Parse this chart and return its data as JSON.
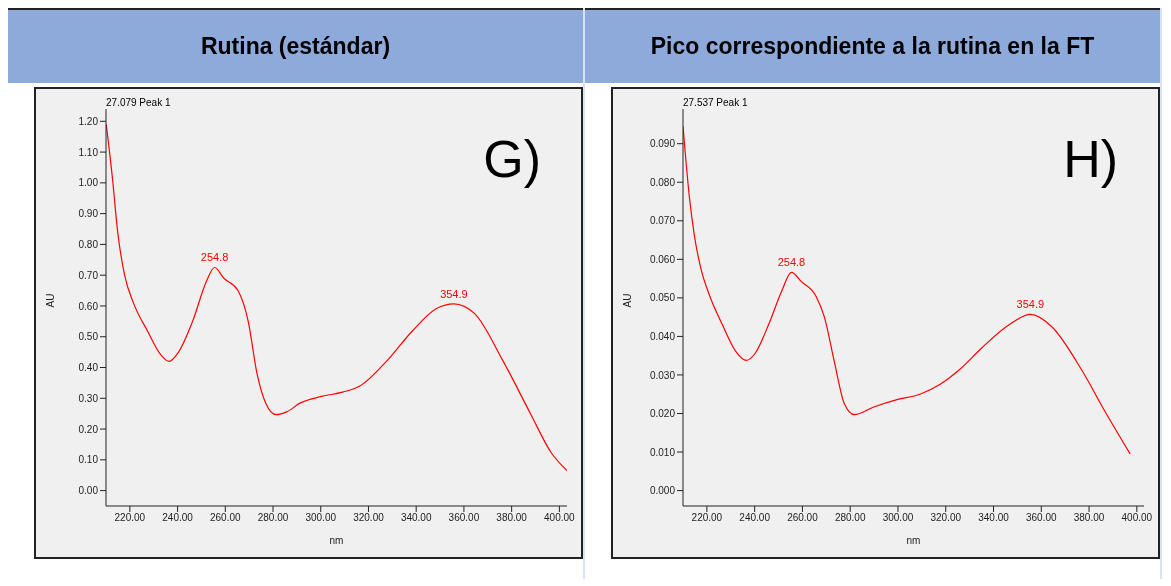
{
  "chart_data": [
    {
      "type": "line",
      "title": "Rutina (estándar)",
      "subtitle": "27.079 Peak 1",
      "xlabel": "nm",
      "ylabel": "AU",
      "marker": "none",
      "line_style": "solid",
      "grid": false,
      "legend": false,
      "x": [
        210.1,
        212.7,
        214.9,
        217.8,
        221.5,
        227.3,
        233.1,
        236.4,
        240.4,
        246.3,
        252.1,
        255.5,
        259.4,
        265.3,
        269.6,
        273.3,
        276.9,
        281.3,
        285.7,
        291.5,
        300.3,
        309.1,
        316.4,
        328,
        338.2,
        348.5,
        355.8,
        364.5,
        376.2,
        387.9,
        396.6,
        403.2
      ],
      "series": [
        {
          "color": "#ff0000",
          "values": [
            1.19,
            1.015,
            0.84,
            0.7,
            0.61,
            0.52,
            0.44,
            0.42,
            0.45,
            0.55,
            0.68,
            0.725,
            0.69,
            0.65,
            0.55,
            0.38,
            0.285,
            0.247,
            0.256,
            0.285,
            0.306,
            0.32,
            0.34,
            0.424,
            0.517,
            0.592,
            0.607,
            0.575,
            0.424,
            0.25,
            0.123,
            0.065
          ]
        }
      ],
      "xlim": [
        210,
        403.2
      ],
      "ylim": [
        -0.05,
        1.24
      ],
      "xticks": [
        {
          "value": 220,
          "label": "220.00"
        },
        {
          "value": 240,
          "label": "240.00"
        },
        {
          "value": 260,
          "label": "260.00"
        },
        {
          "value": 280,
          "label": "280.00"
        },
        {
          "value": 300,
          "label": "300.00"
        },
        {
          "value": 320,
          "label": "320.00"
        },
        {
          "value": 340,
          "label": "340.00"
        },
        {
          "value": 360,
          "label": "360.00"
        },
        {
          "value": 380,
          "label": "380.00"
        },
        {
          "value": 400,
          "label": "400.00"
        }
      ],
      "yticks": [
        {
          "value": 0,
          "label": "0.00"
        },
        {
          "value": 0.1,
          "label": "0.10"
        },
        {
          "value": 0.2,
          "label": "0.20"
        },
        {
          "value": 0.3,
          "label": "0.30"
        },
        {
          "value": 0.4,
          "label": "0.40"
        },
        {
          "value": 0.5,
          "label": "0.50"
        },
        {
          "value": 0.6,
          "label": "0.60"
        },
        {
          "value": 0.7,
          "label": "0.70"
        },
        {
          "value": 0.8,
          "label": "0.80"
        },
        {
          "value": 0.9,
          "label": "0.90"
        },
        {
          "value": 1,
          "label": "1.00"
        },
        {
          "value": 1.1,
          "label": "1.10"
        },
        {
          "value": 1.2,
          "label": "1.20"
        }
      ],
      "annotations": [
        "G)",
        {
          "text": "254.8",
          "x": 255.5,
          "y": 0.725
        },
        {
          "text": "354.9",
          "x": 355.8,
          "y": 0.607
        }
      ]
    },
    {
      "type": "line",
      "title": "Pico correspondiente a la rutina en la FT",
      "subtitle": "27.537 Peak 1",
      "xlabel": "nm",
      "ylabel": "AU",
      "marker": "none",
      "line_style": "solid",
      "grid": false,
      "legend": false,
      "x": [
        210,
        212.7,
        214.8,
        217.5,
        221,
        226.5,
        232,
        236.6,
        240.3,
        245.8,
        251.3,
        255.4,
        259.6,
        265.8,
        269.2,
        273.4,
        277.5,
        281.7,
        289.9,
        299.6,
        309.2,
        317.5,
        325.8,
        335.4,
        346.5,
        355.4,
        364.4,
        376.8,
        386.5,
        397.2
      ],
      "series": [
        {
          "color": "#ff0000",
          "values": [
            0.0945,
            0.076,
            0.066,
            0.0576,
            0.0508,
            0.043,
            0.0362,
            0.0338,
            0.0357,
            0.043,
            0.0517,
            0.0566,
            0.0542,
            0.0503,
            0.045,
            0.0333,
            0.0226,
            0.0197,
            0.0217,
            0.0236,
            0.025,
            0.0275,
            0.0314,
            0.0372,
            0.043,
            0.0457,
            0.0425,
            0.0314,
            0.0207,
            0.0095
          ]
        }
      ],
      "xlim": [
        210,
        403
      ],
      "ylim": [
        -0.004,
        0.099
      ],
      "xticks": [
        {
          "value": 220,
          "label": "220.00"
        },
        {
          "value": 240,
          "label": "240.00"
        },
        {
          "value": 260,
          "label": "260.00"
        },
        {
          "value": 280,
          "label": "280.00"
        },
        {
          "value": 300,
          "label": "300.00"
        },
        {
          "value": 320,
          "label": "320.00"
        },
        {
          "value": 340,
          "label": "340.00"
        },
        {
          "value": 360,
          "label": "360.00"
        },
        {
          "value": 380,
          "label": "380.00"
        },
        {
          "value": 400,
          "label": "400.00"
        }
      ],
      "yticks": [
        {
          "value": 0,
          "label": "0.000"
        },
        {
          "value": 0.01,
          "label": "0.010"
        },
        {
          "value": 0.02,
          "label": "0.020"
        },
        {
          "value": 0.03,
          "label": "0.030"
        },
        {
          "value": 0.04,
          "label": "0.040"
        },
        {
          "value": 0.05,
          "label": "0.050"
        },
        {
          "value": 0.06,
          "label": "0.060"
        },
        {
          "value": 0.07,
          "label": "0.070"
        },
        {
          "value": 0.08,
          "label": "0.080"
        },
        {
          "value": 0.09,
          "label": "0.090"
        }
      ],
      "annotations": [
        "H)",
        {
          "text": "254.8",
          "x": 255.4,
          "y": 0.0566
        },
        {
          "text": "354.9",
          "x": 355.4,
          "y": 0.0457
        }
      ]
    }
  ]
}
